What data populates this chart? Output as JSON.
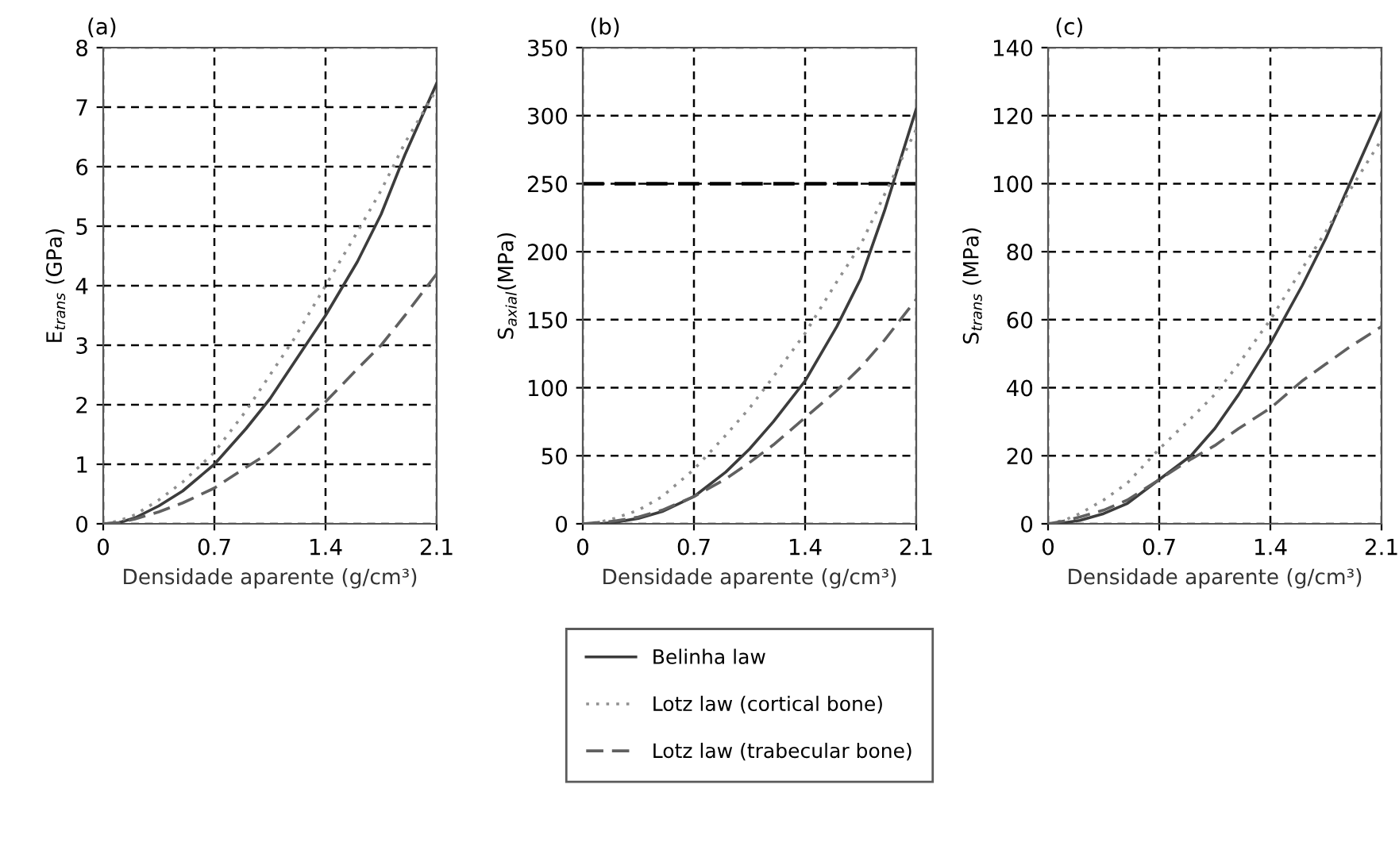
{
  "chart_data": [
    {
      "type": "line",
      "title": "(a)",
      "xlabel": "Densidade aparente (g/cm³)",
      "ylabel": "E$_{trans}$ (GPa)",
      "xlim": [
        0,
        2.1
      ],
      "xticks": [
        0,
        0.7,
        1.4,
        2.1
      ],
      "ylim": [
        0,
        8
      ],
      "yticks": [
        0,
        1,
        2,
        3,
        4,
        5,
        6,
        7,
        8
      ],
      "grid": true,
      "legend": false,
      "marker": "none",
      "x": [
        0,
        0.1,
        0.2,
        0.35,
        0.5,
        0.7,
        0.9,
        1.05,
        1.2,
        1.4,
        1.6,
        1.75,
        1.9,
        2.1
      ],
      "series": [
        {
          "color": "#3c3c3c",
          "line_style": "solid",
          "values": [
            0,
            0.02,
            0.1,
            0.3,
            0.55,
            1.0,
            1.6,
            2.1,
            2.7,
            3.5,
            4.4,
            5.2,
            6.2,
            7.4
          ]
        },
        {
          "color": "#909090",
          "line_style": "dotted",
          "values": [
            0,
            0.05,
            0.15,
            0.4,
            0.7,
            1.2,
            1.9,
            2.5,
            3.1,
            4.0,
            4.9,
            5.6,
            6.4,
            7.3
          ]
        },
        {
          "color": "#606060",
          "line_style": "dashed",
          "values": [
            0,
            0.02,
            0.08,
            0.2,
            0.35,
            0.6,
            0.95,
            1.2,
            1.55,
            2.05,
            2.6,
            3.0,
            3.5,
            4.2
          ]
        }
      ]
    },
    {
      "type": "line",
      "title": "(b)",
      "xlabel": "Densidade aparente (g/cm³)",
      "ylabel": "S$_{axial}$(MPa)",
      "xlim": [
        0,
        2.1
      ],
      "xticks": [
        0,
        0.7,
        1.4,
        2.1
      ],
      "ylim": [
        0,
        350
      ],
      "yticks": [
        0,
        50,
        100,
        150,
        200,
        250,
        300,
        350
      ],
      "grid": true,
      "legend": "bottom",
      "marker": "none",
      "ref_lines": [
        {
          "axis": "y",
          "value": 250,
          "color": "#000000",
          "line_style": "dashed"
        }
      ],
      "x": [
        0,
        0.1,
        0.2,
        0.35,
        0.5,
        0.7,
        0.9,
        1.05,
        1.2,
        1.4,
        1.6,
        1.75,
        1.9,
        2.1
      ],
      "series": [
        {
          "name": "Belinha law",
          "color": "#3c3c3c",
          "line_style": "solid",
          "values": [
            0,
            0,
            1,
            4,
            9,
            20,
            38,
            55,
            75,
            105,
            145,
            180,
            230,
            305
          ]
        },
        {
          "name": "Lotz law (cortical bone)",
          "color": "#909090",
          "line_style": "dotted",
          "values": [
            0,
            1,
            4,
            10,
            20,
            40,
            65,
            85,
            108,
            140,
            178,
            205,
            242,
            290
          ]
        },
        {
          "name": "Lotz law (trabecular bone)",
          "color": "#606060",
          "line_style": "dashed",
          "values": [
            0,
            1,
            2,
            5,
            10,
            20,
            33,
            45,
            58,
            78,
            98,
            115,
            135,
            165
          ]
        }
      ]
    },
    {
      "type": "line",
      "title": "(c)",
      "xlabel": "Densidade aparente (g/cm³)",
      "ylabel": "S$_{trans}$ (MPa)",
      "xlim": [
        0,
        2.1
      ],
      "xticks": [
        0,
        0.7,
        1.4,
        2.1
      ],
      "ylim": [
        0,
        140
      ],
      "yticks": [
        0,
        20,
        40,
        60,
        80,
        100,
        120,
        140
      ],
      "grid": true,
      "legend": false,
      "marker": "none",
      "x": [
        0,
        0.1,
        0.2,
        0.35,
        0.5,
        0.7,
        0.9,
        1.05,
        1.2,
        1.4,
        1.6,
        1.75,
        1.9,
        2.1
      ],
      "series": [
        {
          "color": "#3c3c3c",
          "line_style": "solid",
          "values": [
            0,
            0.3,
            1,
            3,
            6,
            13,
            20,
            28,
            38,
            53,
            70,
            84,
            100,
            121
          ]
        },
        {
          "color": "#909090",
          "line_style": "dotted",
          "values": [
            0,
            1,
            3,
            7,
            12,
            22,
            31,
            38,
            47,
            60,
            75,
            86,
            98,
            113
          ]
        },
        {
          "color": "#606060",
          "line_style": "dashed",
          "values": [
            0,
            0.8,
            2,
            4,
            7,
            13,
            19,
            23,
            28,
            34,
            42,
            47,
            52,
            58
          ]
        }
      ]
    }
  ]
}
